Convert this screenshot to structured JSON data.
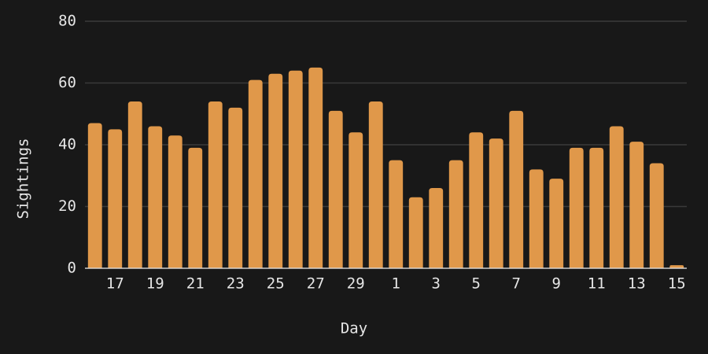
{
  "chart_data": {
    "type": "bar",
    "x_label": "Day",
    "y_label": "Sightings",
    "categories": [
      null,
      "17",
      null,
      "19",
      null,
      "21",
      null,
      "23",
      null,
      "25",
      null,
      "27",
      null,
      "29",
      null,
      "1",
      null,
      "3",
      null,
      "5",
      null,
      "7",
      null,
      "9",
      null,
      "11",
      null,
      "13",
      null,
      "15"
    ],
    "values": [
      47,
      45,
      54,
      46,
      43,
      39,
      54,
      52,
      61,
      63,
      64,
      65,
      51,
      44,
      54,
      35,
      23,
      26,
      35,
      44,
      42,
      51,
      32,
      29,
      39,
      39,
      46,
      41,
      34,
      1
    ],
    "color": "#e0984a",
    "ylim": [
      0,
      80
    ],
    "yticks": [
      0,
      20,
      40,
      60,
      80
    ],
    "grid": true
  }
}
